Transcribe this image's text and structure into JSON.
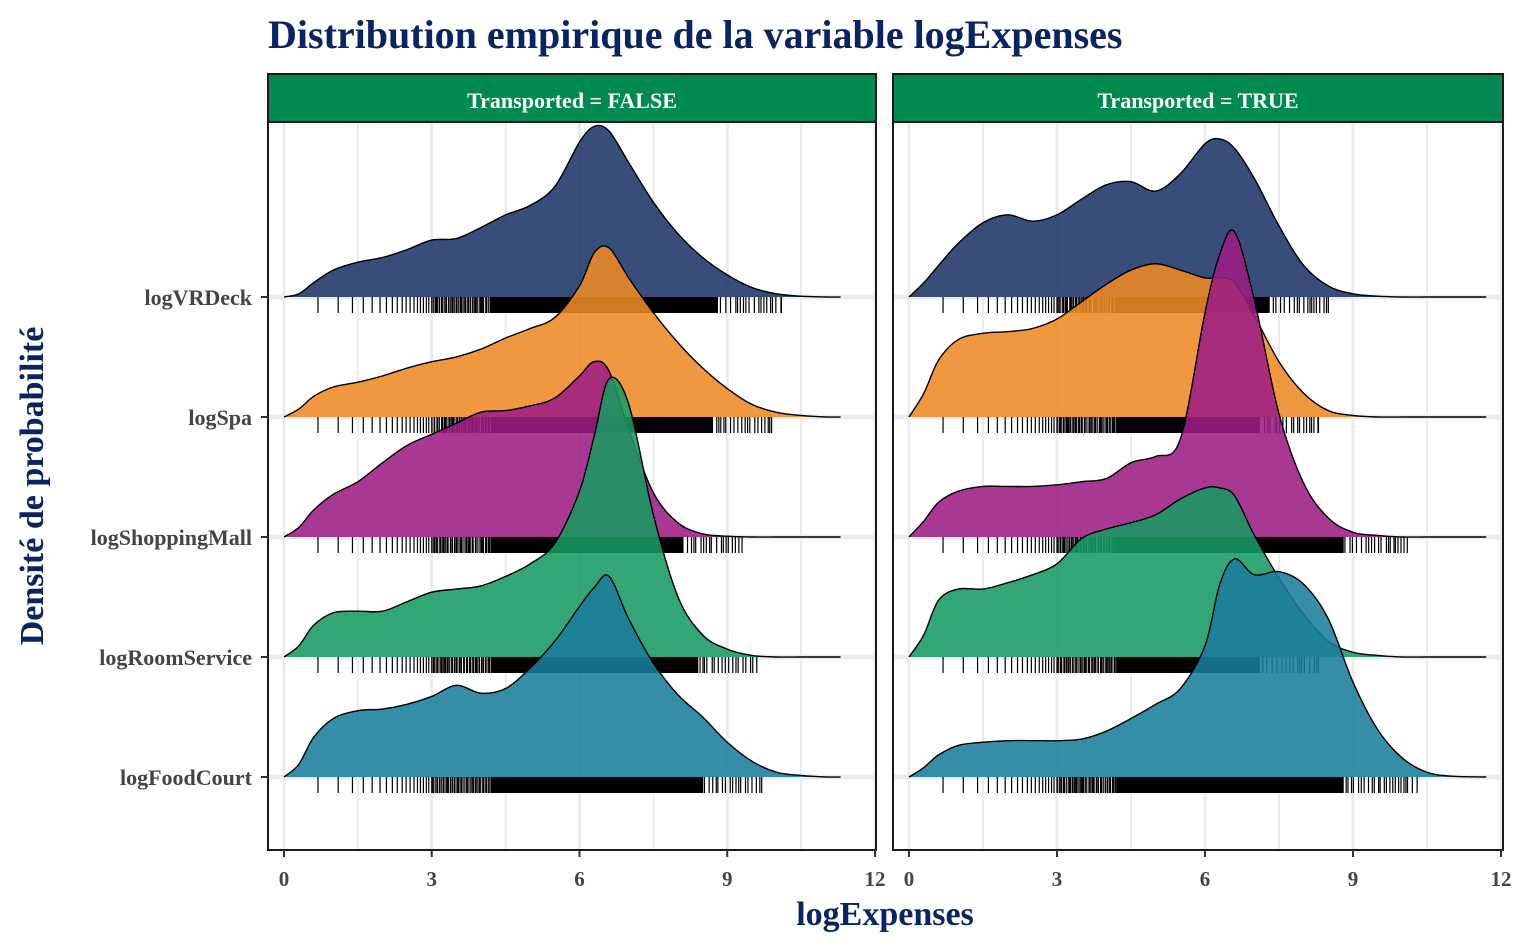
{
  "chart_data": {
    "type": "ridgeline",
    "title": "Distribution empirique de la variable logExpenses",
    "xlabel": "logExpenses",
    "ylabel": "Densité de probabilité",
    "xlim": [
      0,
      12
    ],
    "x_ticks": [
      0,
      3,
      6,
      9,
      12
    ],
    "grid": true,
    "categories": [
      "logFoodCourt",
      "logRoomService",
      "logShoppingMall",
      "logSpa",
      "logVRDeck"
    ],
    "colors": {
      "logVRDeck": "#1d3468",
      "logSpa": "#ee8a26",
      "logShoppingMall": "#9c1c83",
      "logRoomService": "#179a62",
      "logFoodCourt": "#1a7d9c",
      "strip": "#008a50"
    },
    "panels": [
      {
        "strip": "Transported = FALSE",
        "rug_max": {
          "logVRDeck": 10.1,
          "logSpa": 9.9,
          "logShoppingMall": 9.3,
          "logRoomService": 9.6,
          "logFoodCourt": 9.7
        },
        "series": [
          {
            "name": "logVRDeck",
            "x": [
              0,
              0.3,
              0.6,
              1,
              1.5,
              2,
              2.5,
              3,
              3.5,
              4,
              4.5,
              5,
              5.5,
              6,
              6.3,
              6.6,
              7,
              7.5,
              8,
              8.5,
              9,
              9.5,
              10,
              10.5,
              11,
              11.3
            ],
            "density": [
              0,
              0.02,
              0.09,
              0.17,
              0.22,
              0.25,
              0.3,
              0.36,
              0.37,
              0.44,
              0.52,
              0.58,
              0.7,
              0.98,
              1.08,
              1.05,
              0.85,
              0.6,
              0.4,
              0.25,
              0.14,
              0.06,
              0.02,
              0.005,
              0,
              0
            ]
          },
          {
            "name": "logSpa",
            "x": [
              0,
              0.3,
              0.6,
              1,
              1.5,
              2,
              2.5,
              3,
              3.5,
              4,
              4.5,
              5,
              5.5,
              6,
              6.3,
              6.6,
              7,
              7.5,
              8,
              8.5,
              9,
              9.5,
              10,
              10.5,
              11,
              11.3
            ],
            "density": [
              0,
              0.05,
              0.13,
              0.19,
              0.22,
              0.26,
              0.31,
              0.35,
              0.38,
              0.43,
              0.5,
              0.56,
              0.63,
              0.83,
              1.04,
              1.07,
              0.88,
              0.66,
              0.47,
              0.31,
              0.18,
              0.08,
              0.03,
              0.01,
              0,
              0
            ]
          },
          {
            "name": "logShoppingMall",
            "x": [
              0,
              0.3,
              0.6,
              1,
              1.5,
              2,
              2.5,
              3,
              3.5,
              4,
              4.5,
              5,
              5.5,
              6,
              6.3,
              6.6,
              7,
              7.5,
              8,
              8.5,
              9,
              9.5,
              10,
              10.5,
              11,
              11.3
            ],
            "density": [
              0,
              0.06,
              0.17,
              0.27,
              0.35,
              0.47,
              0.58,
              0.65,
              0.72,
              0.79,
              0.8,
              0.83,
              0.88,
              1.02,
              1.11,
              1.05,
              0.68,
              0.28,
              0.09,
              0.02,
              0.005,
              0,
              0,
              0,
              0,
              0
            ]
          },
          {
            "name": "logRoomService",
            "x": [
              0,
              0.3,
              0.6,
              1,
              1.5,
              2,
              2.5,
              3,
              3.5,
              4,
              4.5,
              5,
              5.5,
              6,
              6.3,
              6.6,
              7,
              7.5,
              8,
              8.5,
              9,
              9.5,
              10,
              10.5,
              11,
              11.3
            ],
            "density": [
              0,
              0.07,
              0.2,
              0.28,
              0.29,
              0.29,
              0.35,
              0.41,
              0.43,
              0.45,
              0.51,
              0.59,
              0.72,
              1.05,
              1.4,
              1.76,
              1.6,
              0.9,
              0.38,
              0.14,
              0.05,
              0.01,
              0,
              0,
              0,
              0
            ]
          },
          {
            "name": "logFoodCourt",
            "x": [
              0,
              0.3,
              0.6,
              1,
              1.5,
              2,
              2.5,
              3,
              3.5,
              4,
              4.5,
              5,
              5.5,
              6,
              6.3,
              6.6,
              7,
              7.5,
              8,
              8.5,
              9,
              9.5,
              10,
              10.5,
              11,
              11.3
            ],
            "density": [
              0,
              0.08,
              0.25,
              0.37,
              0.42,
              0.43,
              0.46,
              0.51,
              0.58,
              0.53,
              0.56,
              0.69,
              0.86,
              1.08,
              1.2,
              1.27,
              1.0,
              0.72,
              0.52,
              0.38,
              0.22,
              0.1,
              0.03,
              0.01,
              0,
              0
            ]
          }
        ]
      },
      {
        "strip": "Transported = TRUE",
        "rug_max": {
          "logVRDeck": 8.5,
          "logSpa": 8.3,
          "logShoppingMall": 10.1,
          "logRoomService": 8.3,
          "logFoodCourt": 10.3
        },
        "series": [
          {
            "name": "logVRDeck",
            "x": [
              0,
              0.3,
              0.6,
              1,
              1.5,
              2,
              2.5,
              3,
              3.5,
              4,
              4.5,
              5,
              5.5,
              6,
              6.3,
              6.6,
              7,
              7.5,
              8,
              8.5,
              9,
              9.5,
              10,
              10.5,
              11,
              11.7
            ],
            "density": [
              0,
              0.09,
              0.2,
              0.34,
              0.47,
              0.52,
              0.48,
              0.52,
              0.62,
              0.71,
              0.73,
              0.67,
              0.78,
              0.97,
              1.0,
              0.94,
              0.75,
              0.45,
              0.2,
              0.07,
              0.02,
              0.005,
              0,
              0,
              0,
              0
            ]
          },
          {
            "name": "logSpa",
            "x": [
              0,
              0.3,
              0.6,
              1,
              1.5,
              2,
              2.5,
              3,
              3.5,
              4,
              4.5,
              5,
              5.5,
              6,
              6.3,
              6.6,
              7,
              7.5,
              8,
              8.5,
              9,
              9.5,
              10,
              10.5,
              11,
              11.7
            ],
            "density": [
              0,
              0.15,
              0.36,
              0.49,
              0.53,
              0.54,
              0.56,
              0.62,
              0.73,
              0.84,
              0.93,
              0.97,
              0.93,
              0.88,
              0.88,
              0.85,
              0.64,
              0.35,
              0.15,
              0.04,
              0.01,
              0,
              0,
              0,
              0,
              0
            ]
          },
          {
            "name": "logShoppingMall",
            "x": [
              0,
              0.3,
              0.6,
              1,
              1.5,
              2,
              2.5,
              3,
              3.5,
              4,
              4.5,
              5,
              5.5,
              6,
              6.3,
              6.6,
              7,
              7.5,
              8,
              8.5,
              9,
              9.5,
              10,
              10.5,
              11,
              11.7
            ],
            "density": [
              0,
              0.1,
              0.22,
              0.29,
              0.32,
              0.32,
              0.32,
              0.33,
              0.35,
              0.37,
              0.47,
              0.51,
              0.62,
              1.42,
              1.79,
              1.93,
              1.5,
              0.78,
              0.34,
              0.12,
              0.03,
              0.01,
              0,
              0,
              0,
              0
            ]
          },
          {
            "name": "logRoomService",
            "x": [
              0,
              0.3,
              0.6,
              1,
              1.5,
              2,
              2.5,
              3,
              3.5,
              4,
              4.5,
              5,
              5.5,
              6,
              6.3,
              6.6,
              7,
              7.5,
              8,
              8.5,
              9,
              9.5,
              10,
              10.5,
              11,
              11.7
            ],
            "density": [
              0,
              0.14,
              0.36,
              0.43,
              0.43,
              0.47,
              0.52,
              0.59,
              0.75,
              0.81,
              0.85,
              0.9,
              1.0,
              1.07,
              1.07,
              1.02,
              0.77,
              0.5,
              0.27,
              0.1,
              0.03,
              0.01,
              0,
              0,
              0,
              0
            ]
          },
          {
            "name": "logFoodCourt",
            "x": [
              0,
              0.3,
              0.6,
              1,
              1.5,
              2,
              2.5,
              3,
              3.5,
              4,
              4.5,
              5,
              5.5,
              6,
              6.3,
              6.6,
              7,
              7.5,
              8,
              8.5,
              9,
              9.5,
              10,
              10.5,
              11,
              11.7
            ],
            "density": [
              0,
              0.06,
              0.14,
              0.2,
              0.22,
              0.23,
              0.23,
              0.23,
              0.24,
              0.29,
              0.37,
              0.46,
              0.56,
              0.83,
              1.22,
              1.38,
              1.28,
              1.3,
              1.22,
              1.0,
              0.6,
              0.3,
              0.12,
              0.03,
              0.005,
              0
            ]
          }
        ]
      }
    ]
  }
}
